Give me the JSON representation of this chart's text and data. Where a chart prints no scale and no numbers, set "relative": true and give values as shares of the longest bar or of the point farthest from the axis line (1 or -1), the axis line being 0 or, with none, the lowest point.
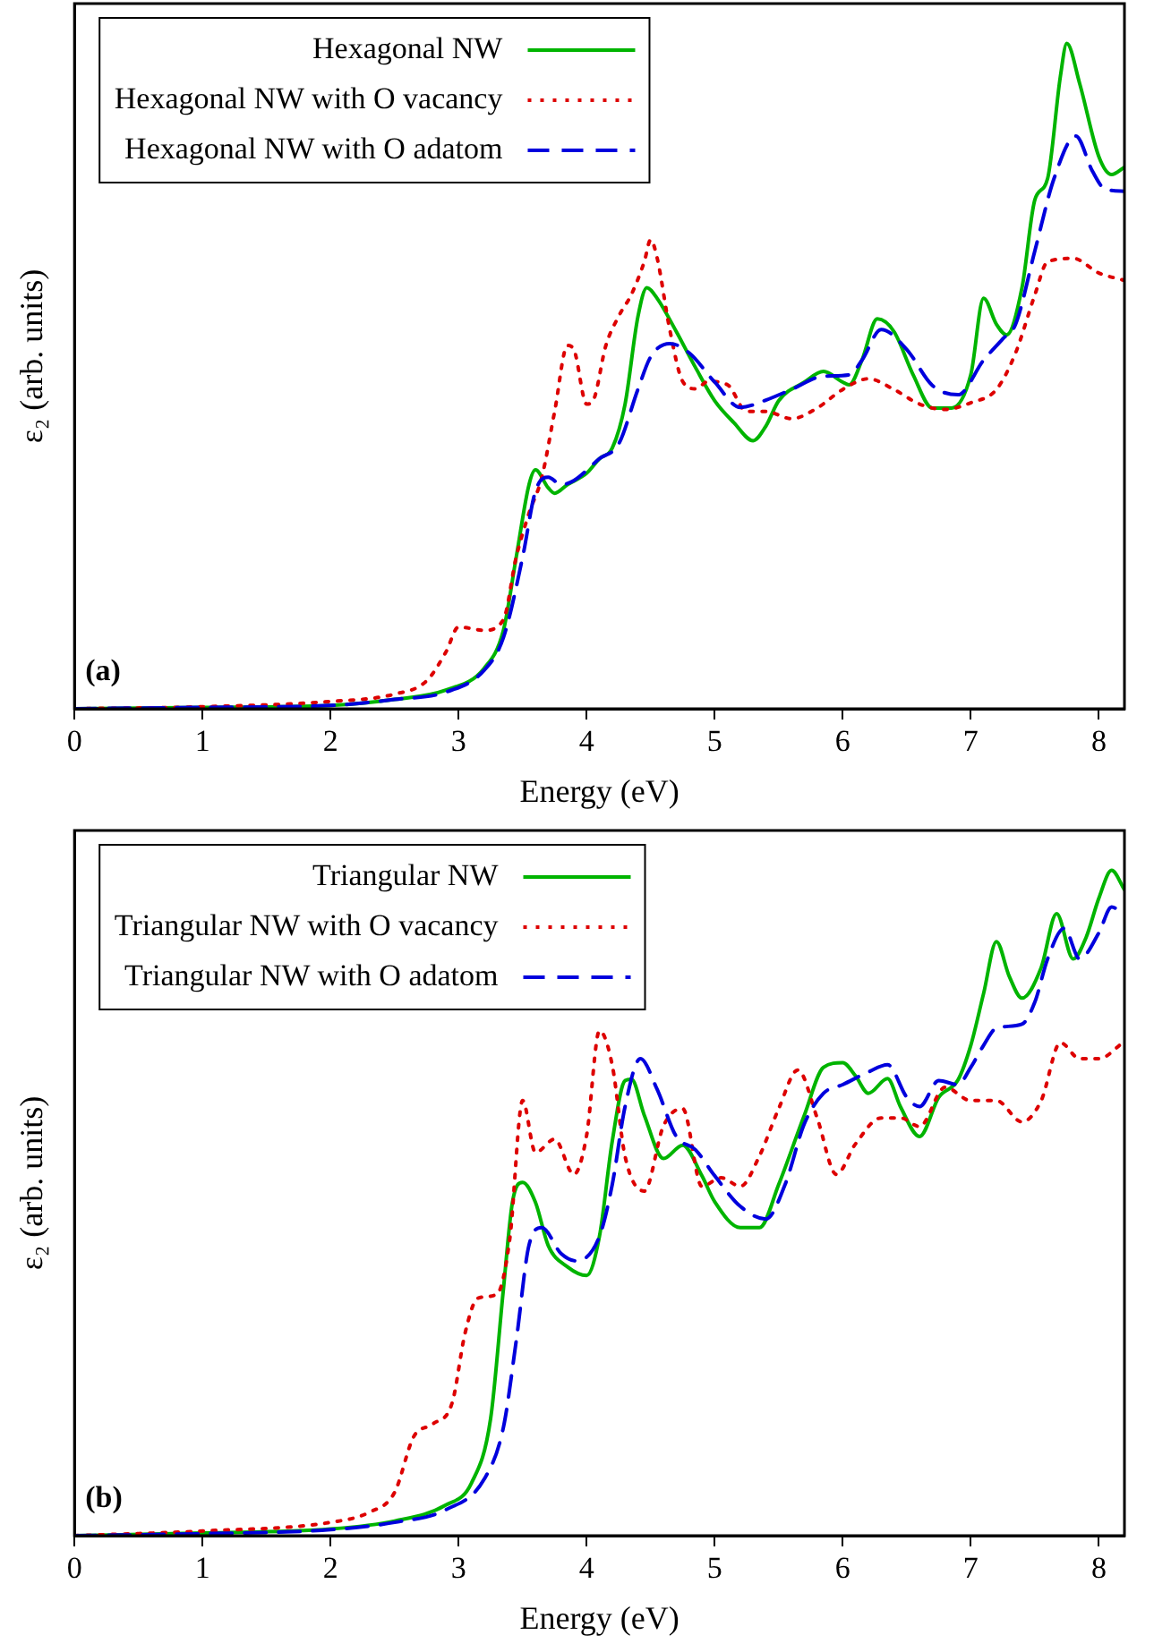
{
  "chart_data": [
    {
      "type": "line",
      "xlabel": "Energy (eV)",
      "ylabel": "ε₂ (arb. units)",
      "relative": true,
      "xlim": [
        0,
        8.2
      ],
      "xticks": [
        0,
        1,
        2,
        3,
        4,
        5,
        6,
        7,
        8
      ],
      "legend": "top left",
      "grid": false,
      "annotations": [
        "(a)"
      ],
      "series": [
        {
          "name": "Hexagonal NW",
          "color": "#00b400",
          "line_style": "solid",
          "x": [
            0,
            1,
            2,
            2.5,
            2.9,
            3.2,
            3.35,
            3.45,
            3.55,
            3.6,
            3.7,
            3.75,
            3.85,
            4.0,
            4.1,
            4.2,
            4.3,
            4.4,
            4.47,
            4.55,
            4.7,
            4.85,
            5.0,
            5.15,
            5.3,
            5.4,
            5.5,
            5.7,
            5.85,
            6.0,
            6.05,
            6.15,
            6.27,
            6.4,
            6.55,
            6.7,
            6.85,
            7.0,
            7.1,
            7.2,
            7.28,
            7.4,
            7.5,
            7.6,
            7.7,
            7.75,
            7.85,
            8.0,
            8.1,
            8.2
          ],
          "values": [
            0,
            0.002,
            0.005,
            0.014,
            0.028,
            0.061,
            0.118,
            0.228,
            0.337,
            0.359,
            0.332,
            0.324,
            0.337,
            0.354,
            0.376,
            0.392,
            0.458,
            0.589,
            0.633,
            0.617,
            0.567,
            0.513,
            0.463,
            0.43,
            0.403,
            0.425,
            0.463,
            0.491,
            0.507,
            0.491,
            0.487,
            0.524,
            0.586,
            0.567,
            0.502,
            0.452,
            0.452,
            0.502,
            0.617,
            0.578,
            0.562,
            0.633,
            0.765,
            0.797,
            0.951,
            1,
            0.94,
            0.83,
            0.803,
            0.814
          ]
        },
        {
          "name": "Hexagonal NW with O vacancy",
          "color": "#dd0000",
          "line_style": "dotted",
          "x": [
            0,
            1,
            2,
            2.5,
            2.75,
            2.9,
            3.0,
            3.2,
            3.35,
            3.45,
            3.55,
            3.65,
            3.75,
            3.85,
            3.9,
            4.0,
            4.05,
            4.15,
            4.25,
            4.35,
            4.45,
            4.5,
            4.55,
            4.65,
            4.75,
            4.85,
            4.95,
            5.1,
            5.25,
            5.4,
            5.6,
            5.8,
            6.0,
            6.2,
            6.4,
            6.6,
            6.8,
            7.0,
            7.2,
            7.35,
            7.5,
            7.6,
            7.8,
            8.0,
            8.2
          ],
          "values": [
            0,
            0.003,
            0.011,
            0.022,
            0.042,
            0.085,
            0.123,
            0.118,
            0.134,
            0.228,
            0.294,
            0.348,
            0.447,
            0.546,
            0.54,
            0.458,
            0.463,
            0.546,
            0.59,
            0.623,
            0.672,
            0.705,
            0.678,
            0.569,
            0.492,
            0.481,
            0.492,
            0.487,
            0.447,
            0.447,
            0.436,
            0.452,
            0.48,
            0.496,
            0.48,
            0.458,
            0.45,
            0.46,
            0.48,
            0.535,
            0.622,
            0.672,
            0.677,
            0.655,
            0.644
          ]
        },
        {
          "name": "Hexagonal NW with O adatom",
          "color": "#0000dd",
          "line_style": "dashed",
          "x": [
            0,
            1,
            2,
            2.5,
            2.9,
            3.2,
            3.35,
            3.5,
            3.6,
            3.7,
            3.8,
            3.9,
            4.1,
            4.25,
            4.4,
            4.5,
            4.65,
            4.8,
            5.0,
            5.2,
            5.4,
            5.6,
            5.85,
            6.05,
            6.15,
            6.3,
            6.5,
            6.7,
            6.9,
            7.1,
            7.25,
            7.35,
            7.5,
            7.65,
            7.82,
            7.95,
            8.05,
            8.2
          ],
          "values": [
            0,
            0.002,
            0.005,
            0.014,
            0.025,
            0.058,
            0.107,
            0.228,
            0.327,
            0.348,
            0.337,
            0.343,
            0.376,
            0.398,
            0.48,
            0.529,
            0.549,
            0.535,
            0.491,
            0.453,
            0.464,
            0.48,
            0.5,
            0.502,
            0.524,
            0.57,
            0.54,
            0.486,
            0.472,
            0.524,
            0.556,
            0.578,
            0.688,
            0.797,
            0.861,
            0.808,
            0.781,
            0.778
          ]
        }
      ]
    },
    {
      "type": "line",
      "xlabel": "Energy (eV)",
      "ylabel": "ε₂ (arb. units)",
      "relative": true,
      "xlim": [
        0,
        8.2
      ],
      "xticks": [
        0,
        1,
        2,
        3,
        4,
        5,
        6,
        7,
        8
      ],
      "legend": "top left",
      "grid": false,
      "annotations": [
        "(b)"
      ],
      "series": [
        {
          "name": "Triangular NW",
          "color": "#00b400",
          "line_style": "solid",
          "x": [
            0,
            1,
            2,
            2.5,
            2.9,
            3.1,
            3.25,
            3.35,
            3.42,
            3.5,
            3.6,
            3.7,
            3.85,
            4.0,
            4.1,
            4.2,
            4.3,
            4.35,
            4.45,
            4.6,
            4.75,
            4.9,
            5.0,
            5.2,
            5.35,
            5.5,
            5.7,
            5.85,
            6.0,
            6.1,
            6.2,
            6.35,
            6.45,
            6.6,
            6.75,
            6.9,
            7.0,
            7.1,
            7.2,
            7.3,
            7.4,
            7.55,
            7.67,
            7.8,
            7.9,
            8.0,
            8.1,
            8.2
          ],
          "values": [
            0,
            0.004,
            0.01,
            0.022,
            0.046,
            0.079,
            0.176,
            0.371,
            0.501,
            0.531,
            0.501,
            0.436,
            0.404,
            0.391,
            0.45,
            0.593,
            0.684,
            0.686,
            0.632,
            0.567,
            0.587,
            0.541,
            0.502,
            0.463,
            0.463,
            0.528,
            0.632,
            0.704,
            0.711,
            0.691,
            0.665,
            0.687,
            0.645,
            0.6,
            0.659,
            0.685,
            0.737,
            0.815,
            0.893,
            0.841,
            0.808,
            0.854,
            0.935,
            0.867,
            0.899,
            0.958,
            1,
            0.971
          ]
        },
        {
          "name": "Triangular NW with O vacancy",
          "color": "#dd0000",
          "line_style": "dotted",
          "x": [
            0,
            1,
            2,
            2.3,
            2.5,
            2.65,
            2.8,
            2.95,
            3.05,
            3.15,
            3.3,
            3.4,
            3.5,
            3.6,
            3.75,
            3.9,
            4.0,
            4.1,
            4.2,
            4.3,
            4.45,
            4.6,
            4.75,
            4.9,
            5.05,
            5.2,
            5.35,
            5.5,
            5.65,
            5.8,
            5.95,
            6.1,
            6.3,
            6.45,
            6.6,
            6.8,
            7.0,
            7.2,
            7.4,
            7.55,
            7.7,
            7.85,
            8.0,
            8.2
          ],
          "values": [
            0,
            0.007,
            0.02,
            0.035,
            0.065,
            0.149,
            0.168,
            0.2,
            0.304,
            0.357,
            0.363,
            0.447,
            0.654,
            0.576,
            0.596,
            0.543,
            0.602,
            0.759,
            0.707,
            0.57,
            0.518,
            0.616,
            0.642,
            0.525,
            0.538,
            0.525,
            0.571,
            0.642,
            0.7,
            0.628,
            0.543,
            0.589,
            0.628,
            0.628,
            0.615,
            0.674,
            0.654,
            0.654,
            0.622,
            0.654,
            0.741,
            0.717,
            0.717,
            0.743
          ]
        },
        {
          "name": "Triangular NW with O adatom",
          "color": "#0000dd",
          "line_style": "dashed",
          "x": [
            0,
            1,
            2,
            2.5,
            2.9,
            3.2,
            3.35,
            3.45,
            3.55,
            3.65,
            3.8,
            3.92,
            4.1,
            4.2,
            4.3,
            4.42,
            4.55,
            4.7,
            4.85,
            5.0,
            5.2,
            5.4,
            5.55,
            5.7,
            5.85,
            6.0,
            6.2,
            6.35,
            6.5,
            6.6,
            6.75,
            6.9,
            7.0,
            7.1,
            7.2,
            7.4,
            7.5,
            7.6,
            7.73,
            7.85,
            8.0,
            8.1,
            8.2
          ],
          "values": [
            0,
            0.003,
            0.009,
            0.02,
            0.039,
            0.085,
            0.163,
            0.293,
            0.437,
            0.463,
            0.424,
            0.413,
            0.45,
            0.528,
            0.645,
            0.717,
            0.671,
            0.6,
            0.58,
            0.541,
            0.495,
            0.476,
            0.528,
            0.619,
            0.665,
            0.678,
            0.697,
            0.708,
            0.659,
            0.645,
            0.684,
            0.678,
            0.704,
            0.737,
            0.763,
            0.769,
            0.802,
            0.867,
            0.913,
            0.867,
            0.906,
            0.945,
            0.932
          ]
        }
      ]
    }
  ]
}
